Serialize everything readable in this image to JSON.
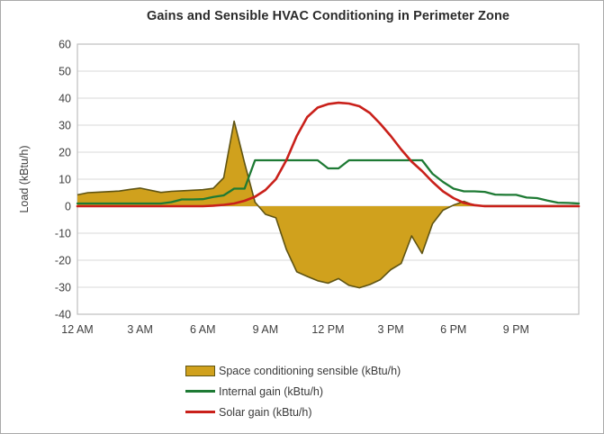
{
  "window": {
    "background": "#ffffff",
    "frame_border_color": "#a9a9a9"
  },
  "chart_data": {
    "type": "area",
    "title": "Gains and Sensible HVAC Conditioning in Perimeter Zone",
    "ylabel": "Load (kBtu/h)",
    "ylim": [
      -40,
      60
    ],
    "ytick_step": 10,
    "grid": "horizontal-only",
    "legend_position": "bottom-left",
    "x_hours_start": 0,
    "x_hours_step": 0.5,
    "x_hours_end": 24,
    "x_tick_hours": [
      0,
      3,
      6,
      9,
      12,
      15,
      18,
      21
    ],
    "x_tick_labels": [
      "12 AM",
      "3 AM",
      "6 AM",
      "9 AM",
      "12 PM",
      "3 PM",
      "6 PM",
      "9 PM"
    ],
    "gridline_color": "#d9d9d9",
    "plot_border_color": "#bfbfbf",
    "series": [
      {
        "name": "Space conditioning sensible (kBtu/h)",
        "type": "area",
        "fill": "#D0A11D",
        "stroke": "#5f5414",
        "stroke_width": 1.6,
        "values": [
          4.2,
          5,
          5.2,
          5.4,
          5.6,
          6.2,
          6.7,
          5.9,
          5.1,
          5.5,
          5.7,
          5.9,
          6.1,
          6.6,
          10.5,
          31.5,
          16,
          1.5,
          -3,
          -4.3,
          -16,
          -24.3,
          -26,
          -27.6,
          -28.5,
          -26.8,
          -29.3,
          -30.2,
          -29,
          -27.2,
          -23.5,
          -21.2,
          -11,
          -17.5,
          -6.5,
          -1.5,
          0.4,
          1.8,
          0.3,
          0.2,
          0.2,
          0.2,
          0.2,
          0.2,
          0.2,
          0.2,
          0.2,
          0.2,
          0.2
        ]
      },
      {
        "name": "Internal gain (kBtu/h)",
        "type": "line",
        "stroke": "#1E7A34",
        "stroke_width": 2.3,
        "values": [
          1,
          1,
          1,
          1,
          1,
          1,
          1,
          1,
          1,
          1.5,
          2.5,
          2.5,
          2.6,
          3.4,
          4,
          6.5,
          6.5,
          17,
          17,
          17,
          17,
          17,
          17,
          17,
          14,
          14,
          17,
          17,
          17,
          17,
          17,
          17,
          17,
          17,
          12,
          9,
          6.5,
          5.5,
          5.5,
          5.3,
          4.3,
          4.2,
          4.2,
          3.2,
          3,
          2.1,
          1.3,
          1.2,
          1
        ]
      },
      {
        "name": "Solar gain (kBtu/h)",
        "type": "line",
        "stroke": "#C9201A",
        "stroke_width": 2.6,
        "values": [
          0,
          0,
          0,
          0,
          0,
          0,
          0,
          0,
          0,
          0,
          0,
          0,
          0,
          0.2,
          0.5,
          1,
          2,
          3.5,
          6,
          10,
          17,
          26,
          33,
          36.5,
          37.8,
          38.3,
          38,
          37,
          34.5,
          30.5,
          26,
          21,
          16.5,
          13,
          9,
          5.5,
          3,
          1.2,
          0.4,
          0,
          0,
          0,
          0,
          0,
          0,
          0,
          0,
          0,
          0
        ]
      }
    ]
  }
}
